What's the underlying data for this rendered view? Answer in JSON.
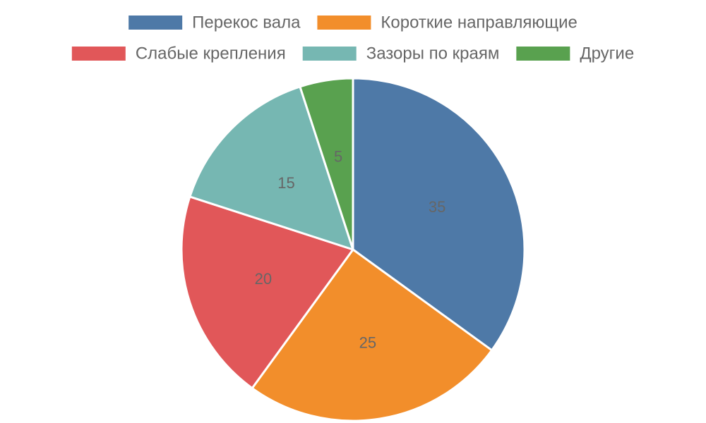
{
  "chart_data": {
    "type": "pie",
    "categories": [
      "Перекос вала",
      "Короткие направляющие",
      "Слабые крепления",
      "Зазоры по краям",
      "Другие"
    ],
    "values": [
      35,
      25,
      20,
      15,
      5
    ],
    "colors": [
      "#4e79a7",
      "#f28e2b",
      "#e15759",
      "#76b7b2",
      "#59a14f"
    ],
    "data_labels": [
      "35",
      "25",
      "20",
      "15",
      "5"
    ],
    "title": "",
    "legend_position": "top"
  }
}
